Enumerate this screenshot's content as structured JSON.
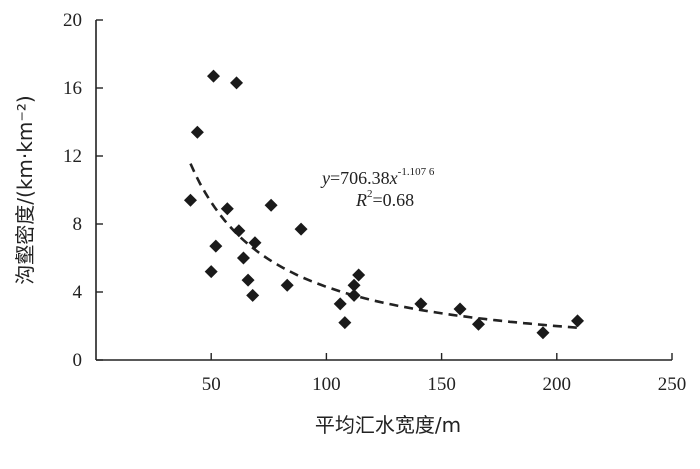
{
  "chart_data": {
    "type": "scatter",
    "xlabel": "平均汇水宽度/m",
    "ylabel": "沟壑密度/(km·km⁻²)",
    "xlim": [
      0,
      250
    ],
    "ylim": [
      0,
      20
    ],
    "x_ticks": [
      50,
      100,
      150,
      200,
      250
    ],
    "y_ticks": [
      0,
      4,
      8,
      12,
      16,
      20
    ],
    "grid": false,
    "points": [
      {
        "x": 41,
        "y": 9.4
      },
      {
        "x": 44,
        "y": 13.4
      },
      {
        "x": 50,
        "y": 5.2
      },
      {
        "x": 51,
        "y": 16.7
      },
      {
        "x": 52,
        "y": 6.7
      },
      {
        "x": 57,
        "y": 8.9
      },
      {
        "x": 61,
        "y": 16.3
      },
      {
        "x": 62,
        "y": 7.6
      },
      {
        "x": 64,
        "y": 6.0
      },
      {
        "x": 66,
        "y": 4.7
      },
      {
        "x": 68,
        "y": 3.8
      },
      {
        "x": 69,
        "y": 6.9
      },
      {
        "x": 76,
        "y": 9.1
      },
      {
        "x": 83,
        "y": 4.4
      },
      {
        "x": 89,
        "y": 7.7
      },
      {
        "x": 106,
        "y": 3.3
      },
      {
        "x": 108,
        "y": 2.2
      },
      {
        "x": 112,
        "y": 4.4
      },
      {
        "x": 112,
        "y": 3.8
      },
      {
        "x": 114,
        "y": 5.0
      },
      {
        "x": 141,
        "y": 3.3
      },
      {
        "x": 158,
        "y": 3.0
      },
      {
        "x": 166,
        "y": 2.1
      },
      {
        "x": 194,
        "y": 1.6
      },
      {
        "x": 209,
        "y": 2.3
      }
    ],
    "fit": {
      "type": "power",
      "a": 706.38,
      "b": -1.1076,
      "x_range": [
        41,
        209
      ],
      "style": "dashed"
    },
    "annotation": {
      "eq_y": "y",
      "eq_mid": "=706.38",
      "eq_x": "x",
      "eq_exp": "-1.107 6",
      "r2_base": "R",
      "r2_sup": "2",
      "r2_value": "=0.68"
    }
  }
}
